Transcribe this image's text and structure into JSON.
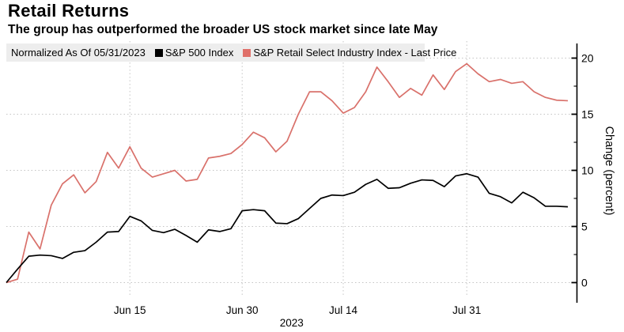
{
  "header": {
    "title": "Retail Returns",
    "subtitle": "The group has outperformed the broader US stock market since late May"
  },
  "legend": {
    "note": "Normalized As Of 05/31/2023",
    "items": [
      {
        "label": "S&P 500 Index",
        "color": "#000000"
      },
      {
        "label": "S&P Retail Select Industry Index - Last Price",
        "color": "#e0706a"
      }
    ]
  },
  "axis": {
    "y_label": "Change (percent)",
    "y_ticks": [
      0,
      5,
      10,
      15,
      20
    ],
    "y_minor_ticks": [
      2.5,
      7.5,
      12.5,
      17.5
    ],
    "x_ticks": [
      {
        "label": "Jun 15",
        "index": 11
      },
      {
        "label": "Jun 30",
        "index": 21
      },
      {
        "label": "Jul 14",
        "index": 30
      },
      {
        "label": "Jul 31",
        "index": 41
      }
    ],
    "x_period_label": "2023"
  },
  "colors": {
    "sp500_line": "#000000",
    "retail_line": "#d9716b",
    "gridline": "#c4c4c4",
    "axis": "#000000",
    "legend_bg": "#ededed"
  },
  "chart_data": {
    "type": "line",
    "title": "Retail Returns",
    "xlabel": "2023",
    "ylabel": "Change (percent)",
    "ylim": [
      0,
      20
    ],
    "grid": true,
    "legend_position": "top",
    "x": [
      "05/31",
      "06/01",
      "06/02",
      "06/05",
      "06/06",
      "06/07",
      "06/08",
      "06/09",
      "06/12",
      "06/13",
      "06/14",
      "06/15",
      "06/16",
      "06/20",
      "06/21",
      "06/22",
      "06/23",
      "06/26",
      "06/27",
      "06/28",
      "06/29",
      "06/30",
      "07/03",
      "07/05",
      "07/06",
      "07/07",
      "07/10",
      "07/11",
      "07/12",
      "07/13",
      "07/14",
      "07/17",
      "07/18",
      "07/19",
      "07/20",
      "07/21",
      "07/24",
      "07/25",
      "07/26",
      "07/27",
      "07/28",
      "07/31",
      "08/01",
      "08/02",
      "08/03",
      "08/04",
      "08/07",
      "08/08",
      "08/09",
      "08/10",
      "08/11"
    ],
    "series": [
      {
        "name": "S&P 500 Index",
        "color": "#000000",
        "values": [
          0,
          1.2,
          2.35,
          2.45,
          2.4,
          2.15,
          2.7,
          2.85,
          3.6,
          4.5,
          4.55,
          5.9,
          5.5,
          4.65,
          4.45,
          4.75,
          4.2,
          3.6,
          4.7,
          4.55,
          4.8,
          6.4,
          6.5,
          6.4,
          5.3,
          5.25,
          5.7,
          6.6,
          7.5,
          7.8,
          7.75,
          8.05,
          8.75,
          9.2,
          8.4,
          8.45,
          8.85,
          9.15,
          9.1,
          8.55,
          9.5,
          9.7,
          9.4,
          7.95,
          7.65,
          7.1,
          8.05,
          7.55,
          6.8,
          6.8,
          6.75
        ]
      },
      {
        "name": "S&P Retail Select Industry Index - Last Price",
        "color": "#d9716b",
        "values": [
          0,
          0.3,
          4.5,
          3.0,
          6.9,
          8.8,
          9.6,
          8.0,
          9.0,
          11.6,
          10.2,
          12.1,
          10.2,
          9.4,
          9.7,
          10.0,
          9.05,
          9.2,
          11.1,
          11.25,
          11.5,
          12.3,
          13.4,
          12.9,
          11.65,
          12.6,
          15.0,
          17.0,
          17.0,
          16.2,
          15.1,
          15.6,
          17.0,
          19.2,
          17.9,
          16.5,
          17.3,
          16.7,
          18.5,
          17.2,
          18.8,
          19.5,
          18.6,
          17.9,
          18.1,
          17.75,
          17.9,
          17.0,
          16.5,
          16.25,
          16.2
        ]
      }
    ]
  }
}
